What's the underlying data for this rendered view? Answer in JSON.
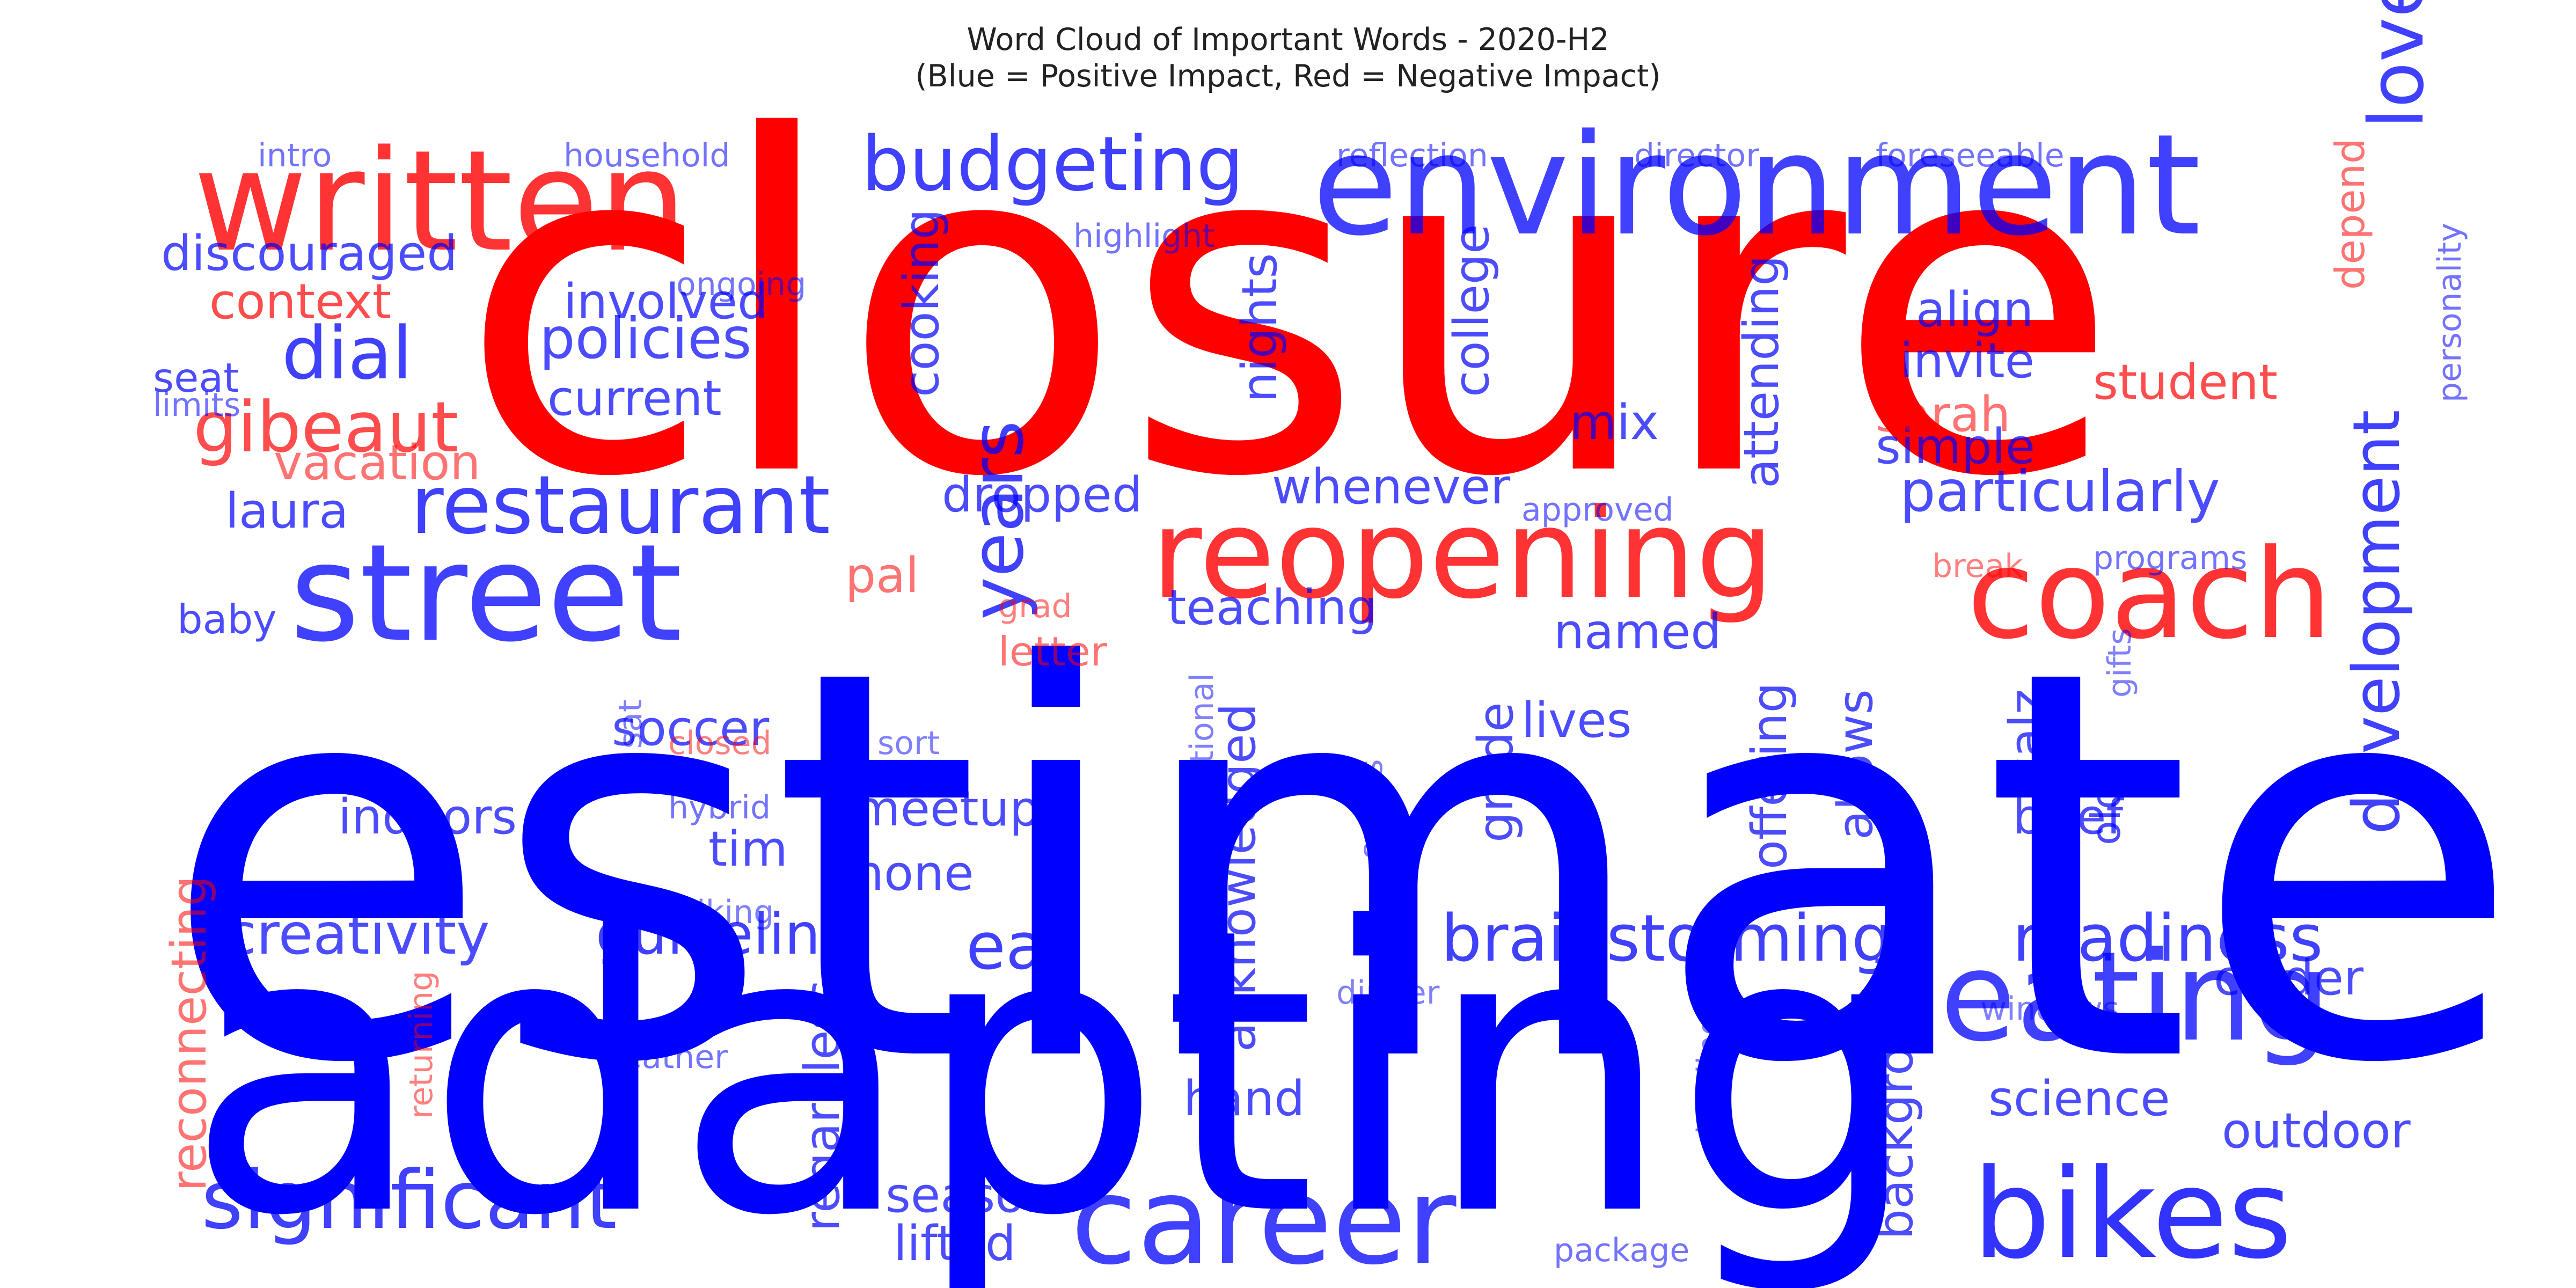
{
  "chart_data": {
    "type": "wordcloud",
    "title": "Word Cloud of Important Words - 2020-H2",
    "subtitle": "(Blue = Positive Impact, Red = Negative Impact)",
    "colors": {
      "positive": "#0000ff",
      "negative": "#ff0000",
      "background": "#ffffff"
    },
    "words": [
      {
        "text": "estimate",
        "sentiment": "positive",
        "weight": 1.0
      },
      {
        "text": "closure",
        "sentiment": "negative",
        "weight": 0.95
      },
      {
        "text": "adapting",
        "sentiment": "positive",
        "weight": 0.78
      },
      {
        "text": "environment",
        "sentiment": "positive",
        "weight": 0.4
      },
      {
        "text": "written",
        "sentiment": "negative",
        "weight": 0.4
      },
      {
        "text": "street",
        "sentiment": "positive",
        "weight": 0.37
      },
      {
        "text": "reopening",
        "sentiment": "negative",
        "weight": 0.35
      },
      {
        "text": "coach",
        "sentiment": "negative",
        "weight": 0.35
      },
      {
        "text": "eating",
        "sentiment": "positive",
        "weight": 0.34
      },
      {
        "text": "bikes",
        "sentiment": "positive",
        "weight": 0.34
      },
      {
        "text": "career",
        "sentiment": "positive",
        "weight": 0.33
      },
      {
        "text": "restaurant",
        "sentiment": "positive",
        "weight": 0.22
      },
      {
        "text": "budgeting",
        "sentiment": "positive",
        "weight": 0.2
      },
      {
        "text": "significant",
        "sentiment": "positive",
        "weight": 0.2
      },
      {
        "text": "brainstorming",
        "sentiment": "positive",
        "weight": 0.19
      },
      {
        "text": "loves",
        "sentiment": "positive",
        "weight": 0.18
      },
      {
        "text": "years",
        "sentiment": "positive",
        "weight": 0.18
      },
      {
        "text": "dial",
        "sentiment": "positive",
        "weight": 0.17
      },
      {
        "text": "development",
        "sentiment": "positive",
        "weight": 0.17
      },
      {
        "text": "readiness",
        "sentiment": "positive",
        "weight": 0.16
      },
      {
        "text": "gibeaut",
        "sentiment": "negative",
        "weight": 0.16
      },
      {
        "text": "particularly",
        "sentiment": "positive",
        "weight": 0.15
      },
      {
        "text": "eat",
        "sentiment": "positive",
        "weight": 0.15
      },
      {
        "text": "guideline",
        "sentiment": "positive",
        "weight": 0.14
      },
      {
        "text": "creativity",
        "sentiment": "positive",
        "weight": 0.14
      },
      {
        "text": "acknowledged",
        "sentiment": "positive",
        "weight": 0.14
      },
      {
        "text": "background",
        "sentiment": "positive",
        "weight": 0.14
      },
      {
        "text": "student",
        "sentiment": "negative",
        "weight": 0.13
      },
      {
        "text": "science",
        "sentiment": "positive",
        "weight": 0.13
      },
      {
        "text": "policies",
        "sentiment": "positive",
        "weight": 0.13
      },
      {
        "text": "reconnecting",
        "sentiment": "negative",
        "weight": 0.12
      },
      {
        "text": "discouraged",
        "sentiment": "positive",
        "weight": 0.12
      },
      {
        "text": "college",
        "sentiment": "positive",
        "weight": 0.12
      },
      {
        "text": "attending",
        "sentiment": "positive",
        "weight": 0.12
      },
      {
        "text": "indoors",
        "sentiment": "positive",
        "weight": 0.12
      },
      {
        "text": "involved",
        "sentiment": "positive",
        "weight": 0.12
      },
      {
        "text": "context",
        "sentiment": "negative",
        "weight": 0.12
      },
      {
        "text": "dropped",
        "sentiment": "positive",
        "weight": 0.12
      },
      {
        "text": "outdoor",
        "sentiment": "positive",
        "weight": 0.12
      },
      {
        "text": "offering",
        "sentiment": "positive",
        "weight": 0.12
      },
      {
        "text": "regardless",
        "sentiment": "positive",
        "weight": 0.12
      },
      {
        "text": "colder",
        "sentiment": "positive",
        "weight": 0.12
      },
      {
        "text": "meetups",
        "sentiment": "positive",
        "weight": 0.12
      },
      {
        "text": "current",
        "sentiment": "positive",
        "weight": 0.11
      },
      {
        "text": "teaching",
        "sentiment": "positive",
        "weight": 0.11
      },
      {
        "text": "whenever",
        "sentiment": "positive",
        "weight": 0.11
      },
      {
        "text": "cooking",
        "sentiment": "positive",
        "weight": 0.11
      },
      {
        "text": "invite",
        "sentiment": "positive",
        "weight": 0.11
      },
      {
        "text": "laura",
        "sentiment": "positive",
        "weight": 0.11
      },
      {
        "text": "season",
        "sentiment": "positive",
        "weight": 0.11
      },
      {
        "text": "nights",
        "sentiment": "positive",
        "weight": 0.11
      },
      {
        "text": "align",
        "sentiment": "positive",
        "weight": 0.11
      },
      {
        "text": "soccer",
        "sentiment": "positive",
        "weight": 0.11
      },
      {
        "text": "simple",
        "sentiment": "positive",
        "weight": 0.11
      },
      {
        "text": "allows",
        "sentiment": "positive",
        "weight": 0.11
      },
      {
        "text": "lives",
        "sentiment": "positive",
        "weight": 0.11
      },
      {
        "text": "hand",
        "sentiment": "positive",
        "weight": 0.11
      },
      {
        "text": "lifted",
        "sentiment": "positive",
        "weight": 0.11
      },
      {
        "text": "brief",
        "sentiment": "positive",
        "weight": 0.11
      },
      {
        "text": "named",
        "sentiment": "positive",
        "weight": 0.1
      },
      {
        "text": "vacation",
        "sentiment": "negative",
        "weight": 0.1
      },
      {
        "text": "grade",
        "sentiment": "positive",
        "weight": 0.1
      },
      {
        "text": "sarah",
        "sentiment": "negative",
        "weight": 0.1
      },
      {
        "text": "depend",
        "sentiment": "negative",
        "weight": 0.1
      },
      {
        "text": "walz",
        "sentiment": "positive",
        "weight": 0.1
      },
      {
        "text": "mix",
        "sentiment": "positive",
        "weight": 0.1
      },
      {
        "text": "tim",
        "sentiment": "positive",
        "weight": 0.1
      },
      {
        "text": "letter",
        "sentiment": "negative",
        "weight": 0.09
      },
      {
        "text": "none",
        "sentiment": "positive",
        "weight": 0.09
      },
      {
        "text": "pal",
        "sentiment": "negative",
        "weight": 0.09
      },
      {
        "text": "seat",
        "sentiment": "positive",
        "weight": 0.09
      },
      {
        "text": "baby",
        "sentiment": "positive",
        "weight": 0.09
      },
      {
        "text": "old",
        "sentiment": "positive",
        "weight": 0.09
      },
      {
        "text": "household",
        "sentiment": "positive",
        "weight": 0.07
      },
      {
        "text": "reflection",
        "sentiment": "positive",
        "weight": 0.07
      },
      {
        "text": "director",
        "sentiment": "positive",
        "weight": 0.07
      },
      {
        "text": "foreseeable",
        "sentiment": "positive",
        "weight": 0.07
      },
      {
        "text": "highlight",
        "sentiment": "positive",
        "weight": 0.07
      },
      {
        "text": "intro",
        "sentiment": "positive",
        "weight": 0.07
      },
      {
        "text": "ongoing",
        "sentiment": "positive",
        "weight": 0.07
      },
      {
        "text": "approved",
        "sentiment": "positive",
        "weight": 0.07
      },
      {
        "text": "programs",
        "sentiment": "positive",
        "weight": 0.07
      },
      {
        "text": "break",
        "sentiment": "negative",
        "weight": 0.07
      },
      {
        "text": "personality",
        "sentiment": "positive",
        "weight": 0.07
      },
      {
        "text": "limits",
        "sentiment": "positive",
        "weight": 0.07
      },
      {
        "text": "grad",
        "sentiment": "negative",
        "weight": 0.07
      },
      {
        "text": "closed",
        "sentiment": "negative",
        "weight": 0.07
      },
      {
        "text": "sat",
        "sentiment": "positive",
        "weight": 0.07
      },
      {
        "text": "sort",
        "sentiment": "positive",
        "weight": 0.07
      },
      {
        "text": "hybrid",
        "sentiment": "positive",
        "weight": 0.07
      },
      {
        "text": "educational",
        "sentiment": "positive",
        "weight": 0.07
      },
      {
        "text": "sports",
        "sentiment": "positive",
        "weight": 0.07
      },
      {
        "text": "gifts",
        "sentiment": "positive",
        "weight": 0.07
      },
      {
        "text": "hiking",
        "sentiment": "positive",
        "weight": 0.07
      },
      {
        "text": "dinner",
        "sentiment": "positive",
        "weight": 0.07
      },
      {
        "text": "windows",
        "sentiment": "positive",
        "weight": 0.07
      },
      {
        "text": "weather",
        "sentiment": "positive",
        "weight": 0.07
      },
      {
        "text": "returning",
        "sentiment": "negative",
        "weight": 0.07
      },
      {
        "text": "sledding",
        "sentiment": "positive",
        "weight": 0.07
      },
      {
        "text": "package",
        "sentiment": "positive",
        "weight": 0.07
      }
    ]
  }
}
